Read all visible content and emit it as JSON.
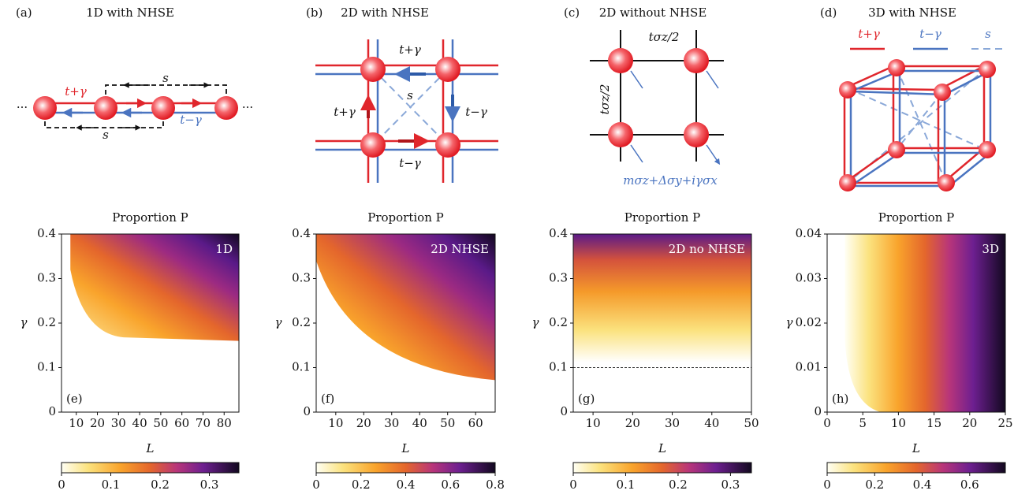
{
  "diagrams": [
    {
      "label": "(a)",
      "title": "1D with NHSE",
      "hop_forward": "t+γ",
      "hop_backward": "t−γ",
      "long_range": "s",
      "ellipsis": "···"
    },
    {
      "label": "(b)",
      "title": "2D with NHSE",
      "hop_forward": "t+γ",
      "hop_backward": "t−γ",
      "long_range": "s"
    },
    {
      "label": "(c)",
      "title": "2D without NHSE",
      "hopping": "tσz/2",
      "onsite": "mσz+Δσy+iγσx"
    },
    {
      "label": "(d)",
      "title": "3D with NHSE",
      "legend": [
        "t+γ",
        "t−γ",
        "s"
      ]
    }
  ],
  "chart_data": [
    {
      "type": "heatmap",
      "title": "Proportion P",
      "panel": "(e)",
      "annotation": "1D",
      "xlabel": "L",
      "ylabel": "γ",
      "xlim": [
        3,
        87
      ],
      "ylim": [
        0,
        0.4
      ],
      "xticks": [
        10,
        20,
        30,
        40,
        50,
        60,
        70,
        80
      ],
      "yticks": [
        0,
        0.1,
        0.2,
        0.3,
        0.4
      ],
      "colorbar": {
        "lim": [
          0,
          0.36
        ],
        "ticks": [
          0,
          0.1,
          0.2,
          0.3
        ]
      }
    },
    {
      "type": "heatmap",
      "title": "Proportion P",
      "panel": "(f)",
      "annotation": "2D NHSE",
      "xlabel": "L",
      "ylabel": "γ",
      "xlim": [
        3,
        67
      ],
      "ylim": [
        0,
        0.4
      ],
      "xticks": [
        10,
        20,
        30,
        40,
        50,
        60
      ],
      "yticks": [
        0,
        0.1,
        0.2,
        0.3,
        0.4
      ],
      "colorbar": {
        "lim": [
          0,
          0.8
        ],
        "ticks": [
          0,
          0.2,
          0.4,
          0.6,
          0.8
        ]
      }
    },
    {
      "type": "heatmap",
      "title": "Proportion P",
      "panel": "(g)",
      "annotation": "2D no NHSE",
      "xlabel": "L",
      "ylabel": "γ",
      "xlim": [
        5,
        50
      ],
      "ylim": [
        0,
        0.4
      ],
      "xticks": [
        10,
        20,
        30,
        40,
        50
      ],
      "yticks": [
        0,
        0.1,
        0.2,
        0.3,
        0.4
      ],
      "hline": 0.1,
      "colorbar": {
        "lim": [
          0,
          0.34
        ],
        "ticks": [
          0,
          0.1,
          0.2,
          0.3
        ]
      }
    },
    {
      "type": "heatmap",
      "title": "Proportion P",
      "panel": "(h)",
      "annotation": "3D",
      "xlabel": "L",
      "ylabel": "γ",
      "xlim": [
        0,
        25
      ],
      "ylim": [
        0,
        0.04
      ],
      "xticks": [
        0,
        5,
        10,
        15,
        20,
        25
      ],
      "yticks": [
        0,
        0.01,
        0.02,
        0.03,
        0.04
      ],
      "colorbar": {
        "lim": [
          0,
          0.75
        ],
        "ticks": [
          0,
          0.2,
          0.4,
          0.6
        ]
      }
    }
  ]
}
